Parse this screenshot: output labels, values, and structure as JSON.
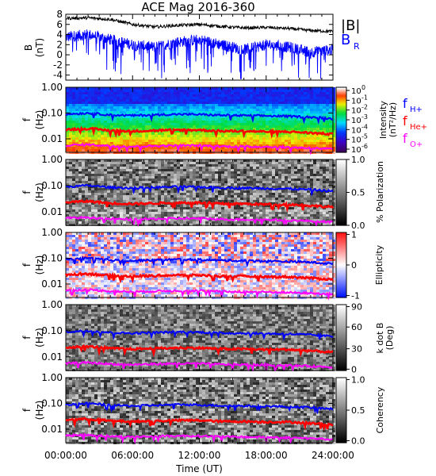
{
  "title": "ACE Mag 2016-360",
  "x_ticks": [
    "00:00:00",
    "06:00:00",
    "12:00:00",
    "18:00:00",
    "24:00:00"
  ],
  "x_axis_label": "Time (UT)",
  "colors": {
    "B_total": "#000000",
    "B_R": "#0000ff",
    "f_H": "#0000ff",
    "f_He": "#ff0000",
    "f_O": "#ff00ff"
  },
  "panel1": {
    "ylabel_main": "B",
    "ylabel_unit": "(nT)",
    "yticks": [
      "8",
      "6",
      "4",
      "2",
      "0",
      "-2",
      "-4"
    ],
    "legend_B": "|B|",
    "legend_BR": "B",
    "legend_BR_sub": "R"
  },
  "freq_yticks": [
    "1.00",
    "0.10",
    "0.01"
  ],
  "freq_ylabel": "f",
  "freq_ylabel_unit": "(Hz)",
  "intensity_bar": {
    "ticks": [
      "10",
      "10",
      "10",
      "10",
      "10",
      "10",
      "10"
    ],
    "exps": [
      "0",
      "-1",
      "-2",
      "-3",
      "-4",
      "-5",
      "-6"
    ],
    "label1": "Intensity",
    "label2": "(nT²/Hz)"
  },
  "ion_legend": [
    {
      "f": "f",
      "sub": "H+",
      "color": "#0000ff"
    },
    {
      "f": "f",
      "sub": "He+",
      "color": "#ff0000"
    },
    {
      "f": "f",
      "sub": "O+",
      "color": "#ff00ff"
    }
  ],
  "polarization_bar": {
    "ticks": [
      "1.0",
      "0.5",
      "0.0"
    ],
    "label": "% Polarization"
  },
  "ellipticity_bar": {
    "ticks": [
      "1",
      "0",
      "-1"
    ],
    "label": "Ellipticity"
  },
  "kdotb_bar": {
    "ticks": [
      "90",
      "60",
      "30",
      "0"
    ],
    "label1": "k dot B",
    "label2": "(Deg)"
  },
  "coherency_bar": {
    "ticks": [
      "1.0",
      "0.5",
      "0.0"
    ],
    "label": "Coherency"
  },
  "chart_data": [
    {
      "type": "line",
      "title": "ACE Mag 2016-360",
      "xlabel": "Time (UT)",
      "ylabel": "B (nT)",
      "ylim": [
        -5,
        8
      ],
      "x": [
        "00:00",
        "02:00",
        "04:00",
        "06:00",
        "08:00",
        "10:00",
        "12:00",
        "14:00",
        "16:00",
        "18:00",
        "20:00",
        "22:00",
        "24:00"
      ],
      "series": [
        {
          "name": "|B|",
          "values": [
            7.2,
            7.3,
            7.0,
            6.0,
            5.5,
            5.8,
            6.0,
            5.6,
            5.3,
            5.4,
            5.2,
            4.8,
            4.6
          ]
        },
        {
          "name": "BR",
          "values": [
            3.5,
            4.0,
            3.0,
            2.0,
            1.5,
            2.5,
            3.0,
            2.0,
            1.0,
            2.0,
            1.5,
            0.5,
            1.0
          ]
        }
      ]
    },
    {
      "type": "heatmap",
      "ylabel": "f (Hz)",
      "yscale": "log",
      "ylim": [
        0.003,
        1.0
      ],
      "colorbar": {
        "label": "Intensity (nT²/Hz)",
        "range_log10": [
          -6,
          0
        ]
      },
      "x": [
        "00:00",
        "02:00",
        "04:00",
        "06:00",
        "08:00",
        "10:00",
        "12:00",
        "14:00",
        "16:00",
        "18:00",
        "20:00",
        "22:00",
        "24:00"
      ],
      "series": [
        {
          "name": "fH+",
          "values": [
            0.09,
            0.1,
            0.085,
            0.08,
            0.085,
            0.09,
            0.088,
            0.082,
            0.08,
            0.078,
            0.075,
            0.07,
            0.06
          ]
        },
        {
          "name": "fHe+",
          "values": [
            0.023,
            0.025,
            0.021,
            0.02,
            0.021,
            0.022,
            0.022,
            0.02,
            0.02,
            0.019,
            0.019,
            0.017,
            0.015
          ]
        },
        {
          "name": "fO+",
          "values": [
            0.0056,
            0.006,
            0.0053,
            0.005,
            0.0053,
            0.0055,
            0.0055,
            0.0051,
            0.005,
            0.0049,
            0.0047,
            0.0044,
            0.004
          ]
        }
      ]
    },
    {
      "type": "heatmap",
      "ylabel": "f (Hz)",
      "yscale": "log",
      "ylim": [
        0.003,
        1.0
      ],
      "colorbar": {
        "label": "% Polarization",
        "range": [
          0.0,
          1.0
        ]
      }
    },
    {
      "type": "heatmap",
      "ylabel": "f (Hz)",
      "yscale": "log",
      "ylim": [
        0.003,
        1.0
      ],
      "colorbar": {
        "label": "Ellipticity",
        "range": [
          -1,
          1
        ]
      }
    },
    {
      "type": "heatmap",
      "ylabel": "f (Hz)",
      "yscale": "log",
      "ylim": [
        0.003,
        1.0
      ],
      "colorbar": {
        "label": "k dot B (Deg)",
        "range": [
          0,
          90
        ]
      }
    },
    {
      "type": "heatmap",
      "ylabel": "f (Hz)",
      "yscale": "log",
      "ylim": [
        0.003,
        1.0
      ],
      "colorbar": {
        "label": "Coherency",
        "range": [
          0.0,
          1.0
        ]
      }
    }
  ]
}
